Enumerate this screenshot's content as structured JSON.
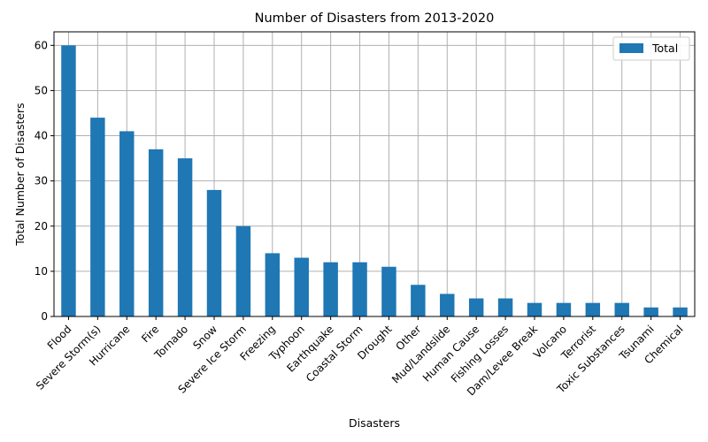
{
  "chart_data": {
    "type": "bar",
    "title": "Number of Disasters from 2013-2020",
    "xlabel": "Disasters",
    "ylabel": "Total Number of Disasters",
    "categories": [
      "Flood",
      "Severe Storm(s)",
      "Hurricane",
      "Fire",
      "Tornado",
      "Snow",
      "Severe Ice Storm",
      "Freezing",
      "Typhoon",
      "Earthquake",
      "Coastal Storm",
      "Drought",
      "Other",
      "Mud/Landslide",
      "Human Cause",
      "Fishing Losses",
      "Dam/Levee Break",
      "Volcano",
      "Terrorist",
      "Toxic Substances",
      "Tsunami",
      "Chemical"
    ],
    "series": [
      {
        "name": "Total",
        "values": [
          60,
          44,
          41,
          37,
          35,
          28,
          20,
          14,
          13,
          12,
          12,
          11,
          7,
          5,
          4,
          4,
          3,
          3,
          3,
          3,
          2,
          2
        ]
      }
    ],
    "ylim": [
      0,
      63
    ],
    "yticks": [
      0,
      10,
      20,
      30,
      40,
      50,
      60
    ],
    "grid": true,
    "legend_position": "top-right",
    "bar_color": "#1f77b4"
  }
}
